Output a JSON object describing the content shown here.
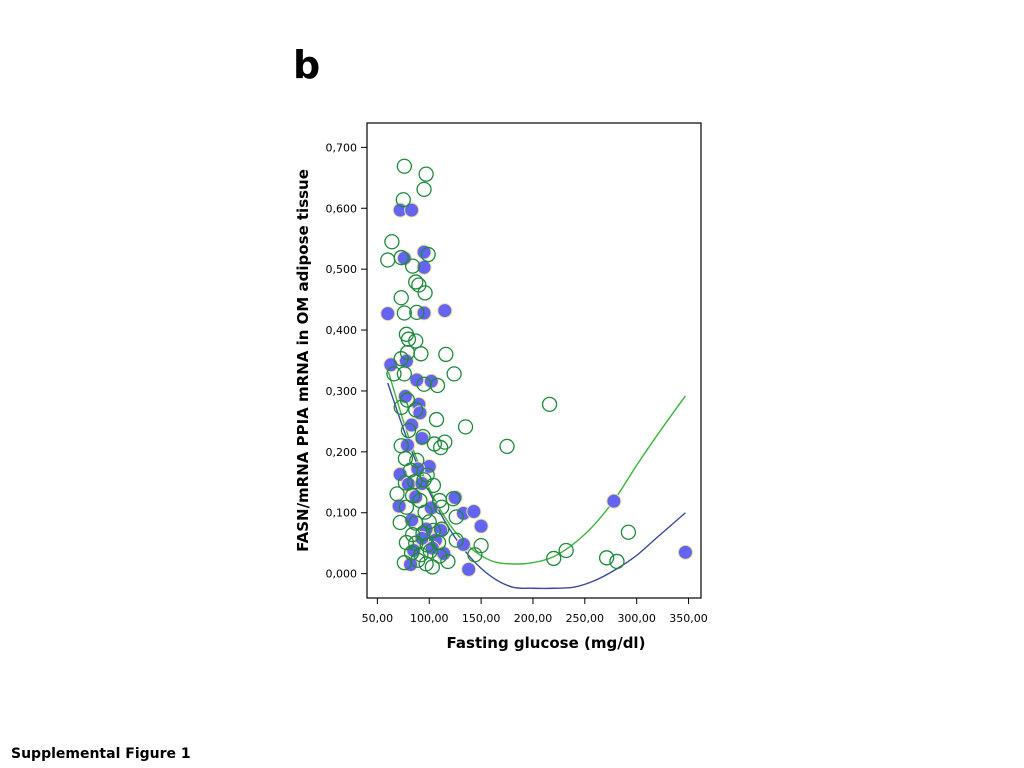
{
  "panel_label": "b",
  "caption": "Supplemental Figure 1",
  "colors": {
    "filled_marker": "#6464f0",
    "filled_marker_edge": "#e8e0a0",
    "open_marker": "#1e8a3c",
    "filled_fit": "#3a4a9a",
    "open_fit": "#3cb43c"
  },
  "chart_data": {
    "type": "scatter",
    "title": "",
    "xlabel": "Fasting glucose (mg/dl)",
    "ylabel": "FASN/mRNA PPIA mRNA in OM adipose tissue",
    "xlim": [
      40,
      362
    ],
    "ylim": [
      -0.04,
      0.74
    ],
    "x_ticks": [
      50,
      100,
      150,
      200,
      250,
      300,
      350
    ],
    "x_tick_labels": [
      "50,00",
      "100,00",
      "150,00",
      "200,00",
      "250,00",
      "300,00",
      "350,00"
    ],
    "y_ticks": [
      0,
      0.1,
      0.2,
      0.3,
      0.4,
      0.5,
      0.6,
      0.7
    ],
    "y_tick_labels": [
      "0,000",
      "0,100",
      "0,200",
      "0,300",
      "0,400",
      "0,500",
      "0,600",
      "0,700"
    ],
    "grid": false,
    "legend": "none",
    "series": [
      {
        "marker": "filled",
        "points": [
          [
            72,
            0.597
          ],
          [
            83,
            0.597
          ],
          [
            95,
            0.528
          ],
          [
            76,
            0.518
          ],
          [
            95,
            0.503
          ],
          [
            60,
            0.427
          ],
          [
            95,
            0.428
          ],
          [
            115,
            0.432
          ],
          [
            63,
            0.343
          ],
          [
            78,
            0.349
          ],
          [
            88,
            0.318
          ],
          [
            102,
            0.316
          ],
          [
            77,
            0.291
          ],
          [
            90,
            0.278
          ],
          [
            91,
            0.264
          ],
          [
            83,
            0.244
          ],
          [
            93,
            0.222
          ],
          [
            79,
            0.211
          ],
          [
            100,
            0.176
          ],
          [
            72,
            0.163
          ],
          [
            89,
            0.172
          ],
          [
            80,
            0.147
          ],
          [
            93,
            0.148
          ],
          [
            71,
            0.111
          ],
          [
            87,
            0.126
          ],
          [
            102,
            0.108
          ],
          [
            125,
            0.125
          ],
          [
            83,
            0.088
          ],
          [
            97,
            0.073
          ],
          [
            111,
            0.071
          ],
          [
            133,
            0.099
          ],
          [
            143,
            0.102
          ],
          [
            150,
            0.078
          ],
          [
            93,
            0.058
          ],
          [
            106,
            0.055
          ],
          [
            85,
            0.038
          ],
          [
            103,
            0.042
          ],
          [
            114,
            0.033
          ],
          [
            133,
            0.048
          ],
          [
            82,
            0.015
          ],
          [
            138,
            0.007
          ],
          [
            278,
            0.119
          ],
          [
            347,
            0.035
          ]
        ]
      },
      {
        "marker": "open",
        "points": [
          [
            76,
            0.669
          ],
          [
            97,
            0.656
          ],
          [
            95,
            0.631
          ],
          [
            75,
            0.614
          ],
          [
            64,
            0.545
          ],
          [
            60,
            0.515
          ],
          [
            73,
            0.519
          ],
          [
            99,
            0.524
          ],
          [
            84,
            0.505
          ],
          [
            87,
            0.479
          ],
          [
            90,
            0.474
          ],
          [
            96,
            0.461
          ],
          [
            73,
            0.453
          ],
          [
            76,
            0.428
          ],
          [
            88,
            0.429
          ],
          [
            78,
            0.393
          ],
          [
            80,
            0.385
          ],
          [
            87,
            0.382
          ],
          [
            92,
            0.361
          ],
          [
            116,
            0.36
          ],
          [
            79,
            0.363
          ],
          [
            73,
            0.353
          ],
          [
            66,
            0.328
          ],
          [
            76,
            0.328
          ],
          [
            124,
            0.328
          ],
          [
            95,
            0.311
          ],
          [
            108,
            0.309
          ],
          [
            79,
            0.285
          ],
          [
            73,
            0.273
          ],
          [
            87,
            0.269
          ],
          [
            107,
            0.253
          ],
          [
            135,
            0.241
          ],
          [
            80,
            0.235
          ],
          [
            94,
            0.225
          ],
          [
            73,
            0.21
          ],
          [
            105,
            0.213
          ],
          [
            111,
            0.207
          ],
          [
            115,
            0.216
          ],
          [
            175,
            0.209
          ],
          [
            216,
            0.278
          ],
          [
            77,
            0.189
          ],
          [
            88,
            0.186
          ],
          [
            82,
            0.17
          ],
          [
            98,
            0.162
          ],
          [
            95,
            0.154
          ],
          [
            77,
            0.149
          ],
          [
            86,
            0.151
          ],
          [
            104,
            0.145
          ],
          [
            69,
            0.131
          ],
          [
            84,
            0.128
          ],
          [
            91,
            0.12
          ],
          [
            110,
            0.12
          ],
          [
            123,
            0.123
          ],
          [
            78,
            0.109
          ],
          [
            96,
            0.101
          ],
          [
            112,
            0.109
          ],
          [
            72,
            0.084
          ],
          [
            87,
            0.083
          ],
          [
            100,
            0.085
          ],
          [
            126,
            0.093
          ],
          [
            84,
            0.064
          ],
          [
            94,
            0.066
          ],
          [
            104,
            0.071
          ],
          [
            112,
            0.073
          ],
          [
            78,
            0.051
          ],
          [
            87,
            0.05
          ],
          [
            98,
            0.047
          ],
          [
            109,
            0.051
          ],
          [
            126,
            0.055
          ],
          [
            150,
            0.046
          ],
          [
            83,
            0.034
          ],
          [
            92,
            0.031
          ],
          [
            101,
            0.037
          ],
          [
            110,
            0.029
          ],
          [
            118,
            0.02
          ],
          [
            144,
            0.031
          ],
          [
            76,
            0.018
          ],
          [
            89,
            0.022
          ],
          [
            97,
            0.016
          ],
          [
            103,
            0.011
          ],
          [
            220,
            0.025
          ],
          [
            232,
            0.038
          ],
          [
            271,
            0.026
          ],
          [
            281,
            0.02
          ],
          [
            292,
            0.068
          ]
        ]
      }
    ],
    "fit_lines": [
      {
        "series": "filled",
        "x": [
          60,
          80,
          100,
          120,
          140,
          160,
          180,
          200,
          220,
          240,
          260,
          280,
          300,
          320,
          347
        ],
        "y": [
          0.313,
          0.215,
          0.135,
          0.072,
          0.026,
          -0.005,
          -0.022,
          -0.024,
          -0.024,
          -0.022,
          -0.011,
          0.007,
          0.03,
          0.06,
          0.1
        ]
      },
      {
        "series": "open",
        "x": [
          60,
          80,
          100,
          120,
          140,
          160,
          180,
          200,
          220,
          240,
          260,
          280,
          300,
          320,
          347
        ],
        "y": [
          0.335,
          0.225,
          0.14,
          0.08,
          0.042,
          0.021,
          0.016,
          0.018,
          0.028,
          0.05,
          0.082,
          0.125,
          0.178,
          0.228,
          0.292
        ]
      }
    ]
  }
}
